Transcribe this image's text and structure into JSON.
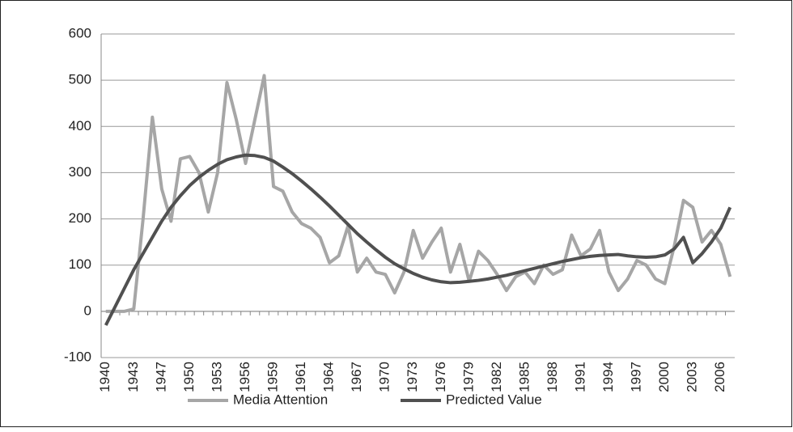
{
  "chart_data": {
    "type": "line",
    "categories": [
      "1940",
      null,
      null,
      "1943",
      null,
      null,
      "1947",
      null,
      null,
      "1950",
      null,
      null,
      "1953",
      null,
      null,
      "1956",
      null,
      null,
      "1959",
      null,
      null,
      "1961",
      null,
      null,
      "1964",
      null,
      null,
      "1967",
      null,
      null,
      "1970",
      null,
      null,
      "1973",
      null,
      null,
      "1976",
      null,
      null,
      "1979",
      null,
      null,
      "1982",
      null,
      null,
      "1985",
      null,
      null,
      "1988",
      null,
      null,
      "1991",
      null,
      null,
      "1994",
      null,
      null,
      "1997",
      null,
      null,
      "2000",
      null,
      null,
      "2003",
      null,
      null,
      "2006",
      null
    ],
    "series": [
      {
        "name": "Media Attention",
        "color": "#a6a6a6",
        "values": [
          0,
          0,
          0,
          5,
          200,
          420,
          265,
          195,
          330,
          335,
          300,
          215,
          300,
          495,
          415,
          320,
          415,
          510,
          270,
          260,
          215,
          190,
          180,
          160,
          105,
          120,
          185,
          85,
          115,
          85,
          80,
          40,
          85,
          175,
          115,
          150,
          180,
          85,
          145,
          65,
          130,
          110,
          80,
          45,
          75,
          85,
          60,
          100,
          80,
          90,
          165,
          120,
          135,
          175,
          85,
          45,
          70,
          110,
          100,
          70,
          60,
          140,
          240,
          225,
          150,
          175,
          145,
          75
        ]
      },
      {
        "name": "Predicted Value",
        "color": "#505050",
        "values": [
          -30,
          10,
          50,
          90,
          125,
          160,
          195,
          225,
          250,
          272,
          290,
          305,
          318,
          328,
          334,
          338,
          337,
          333,
          325,
          312,
          298,
          282,
          265,
          247,
          228,
          208,
          188,
          168,
          150,
          133,
          117,
          103,
          92,
          82,
          74,
          68,
          64,
          62,
          63,
          65,
          67,
          70,
          74,
          78,
          83,
          88,
          93,
          98,
          103,
          108,
          112,
          116,
          119,
          121,
          122,
          123,
          120,
          118,
          117,
          118,
          122,
          135,
          160,
          105,
          125,
          150,
          180,
          225
        ]
      }
    ],
    "ylim": [
      -100,
      600
    ],
    "yticks": [
      600,
      500,
      400,
      300,
      200,
      100,
      0,
      -100
    ],
    "grid": true,
    "legend": "bottom"
  }
}
